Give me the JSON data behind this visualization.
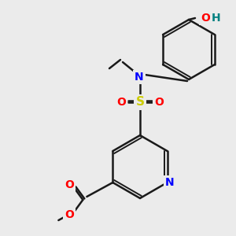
{
  "bg_color": "#ebebeb",
  "bond_color": "#1a1a1a",
  "bond_lw": 1.8,
  "atom_colors": {
    "N": "#0000ff",
    "O": "#ff0000",
    "S": "#cccc00",
    "O_teal": "#008080",
    "C": "#1a1a1a"
  },
  "font_size": 9,
  "font_size_small": 8
}
